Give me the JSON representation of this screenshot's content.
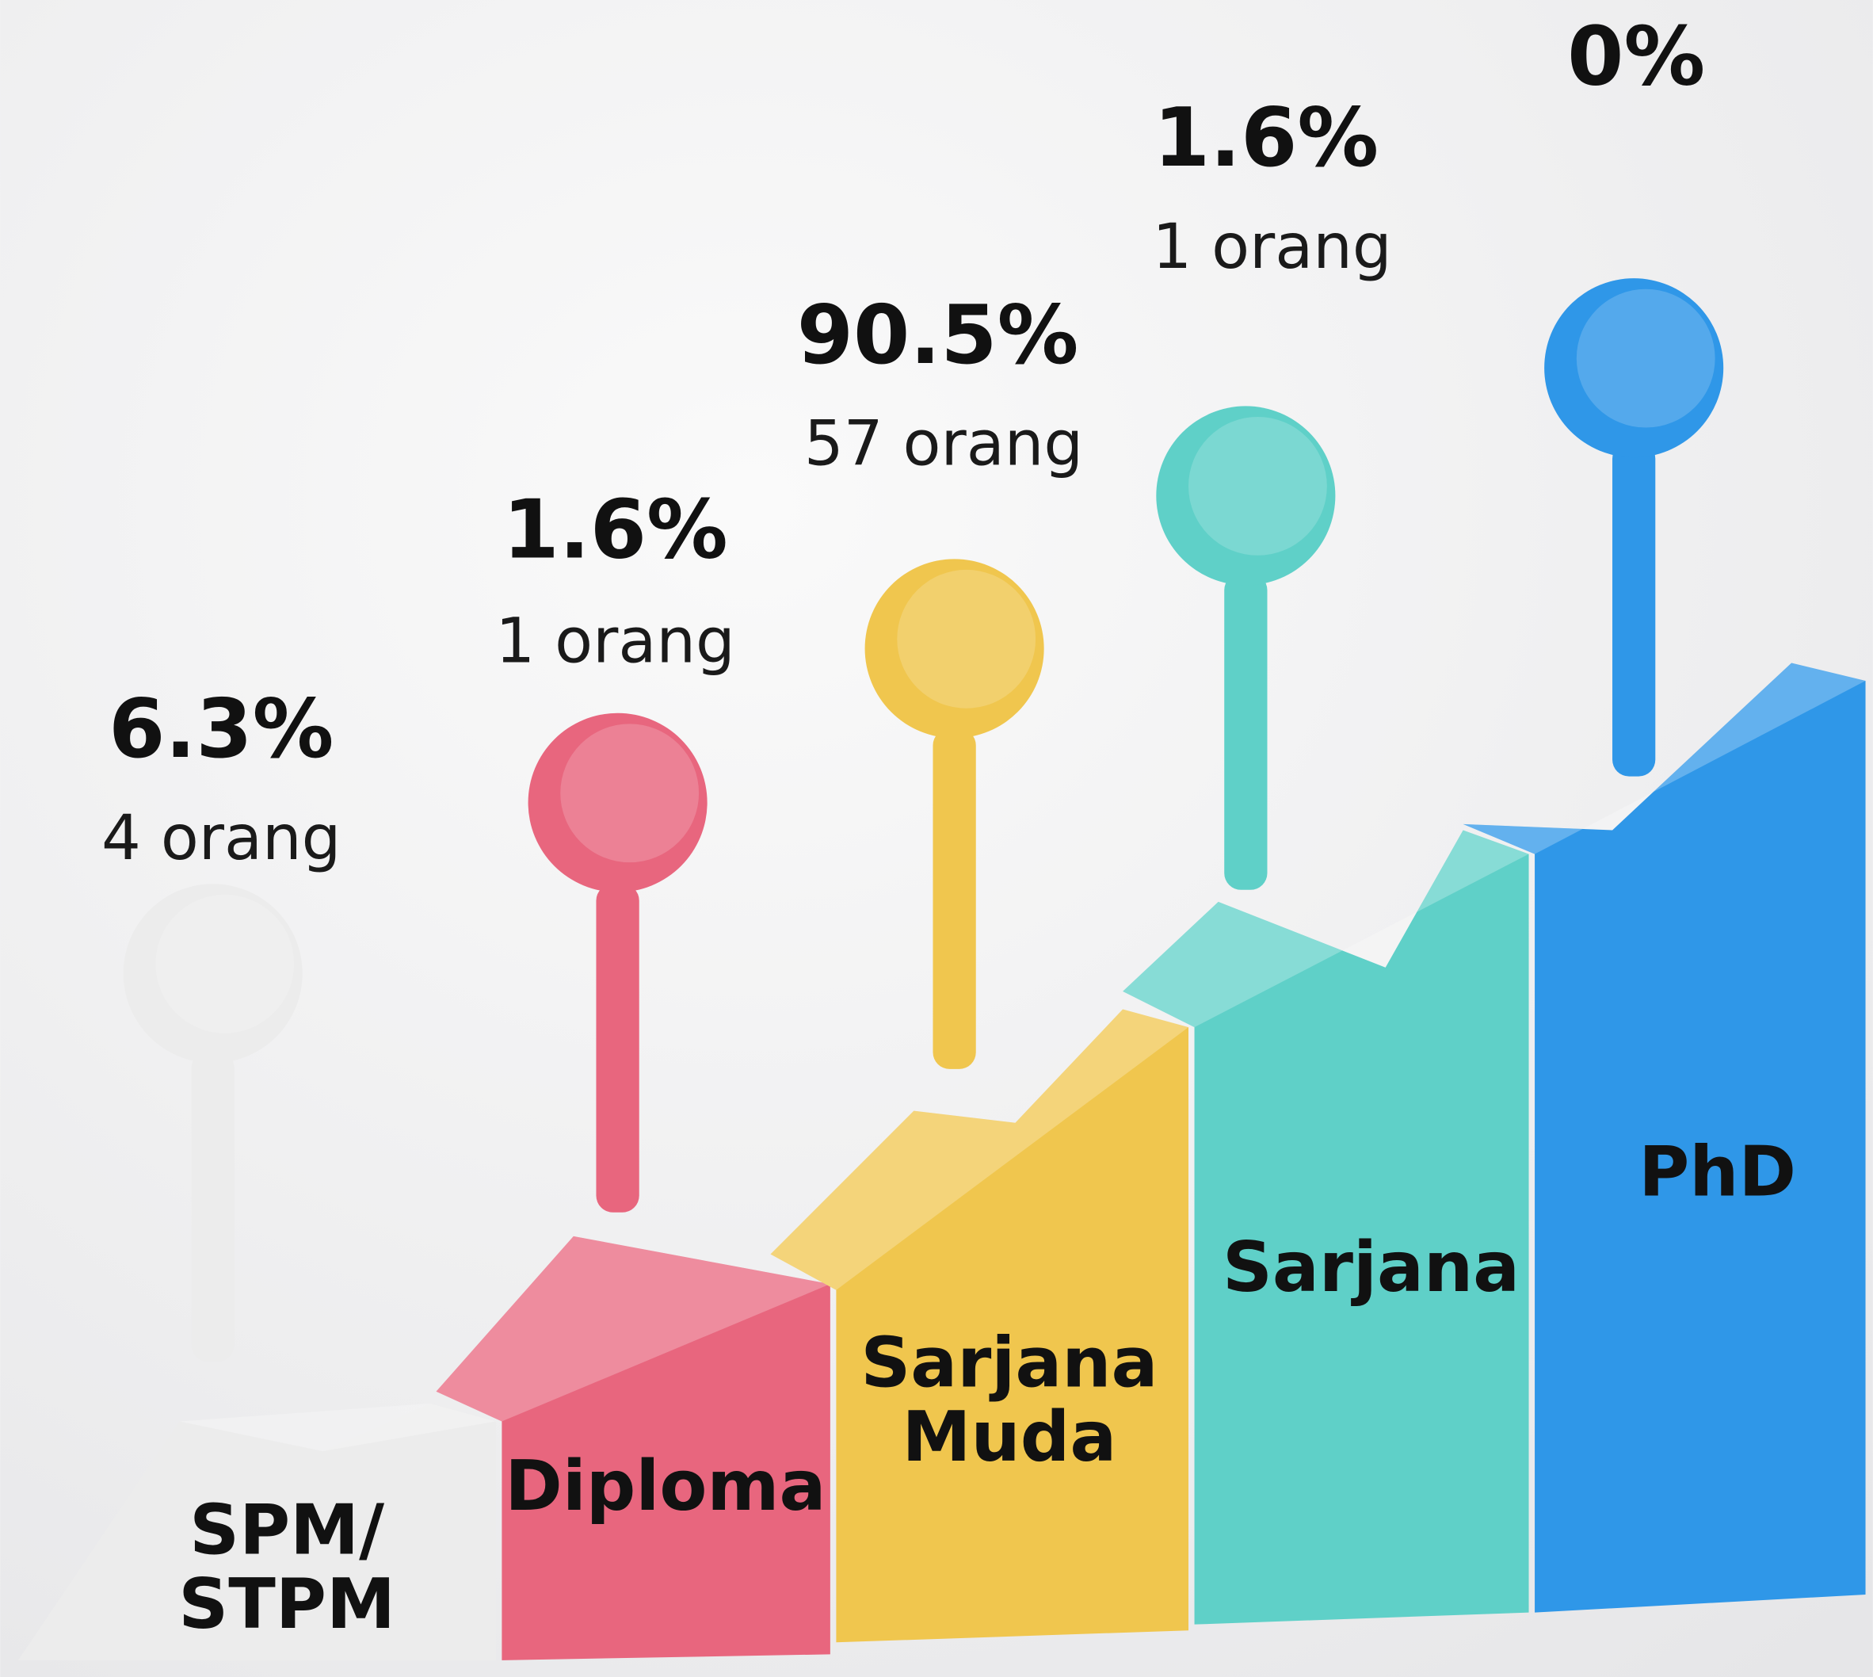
{
  "items": [
    {
      "label": [
        "SPM/",
        "STPM"
      ],
      "percent": "6.3%",
      "count": "4 orang",
      "color": "#ececec"
    },
    {
      "label": [
        "Diploma"
      ],
      "percent": "1.6%",
      "count": "1 orang",
      "color": "#e8667e"
    },
    {
      "label": [
        "Sarjana",
        "Muda"
      ],
      "percent": "90.5%",
      "count": "57 orang",
      "color": "#f0c64e"
    },
    {
      "label": [
        "Sarjana"
      ],
      "percent": "1.6%",
      "count": "1 orang",
      "color": "#5fd0c8"
    },
    {
      "label": [
        "PhD"
      ],
      "percent": "0%",
      "color": "#2f97e8"
    }
  ]
}
